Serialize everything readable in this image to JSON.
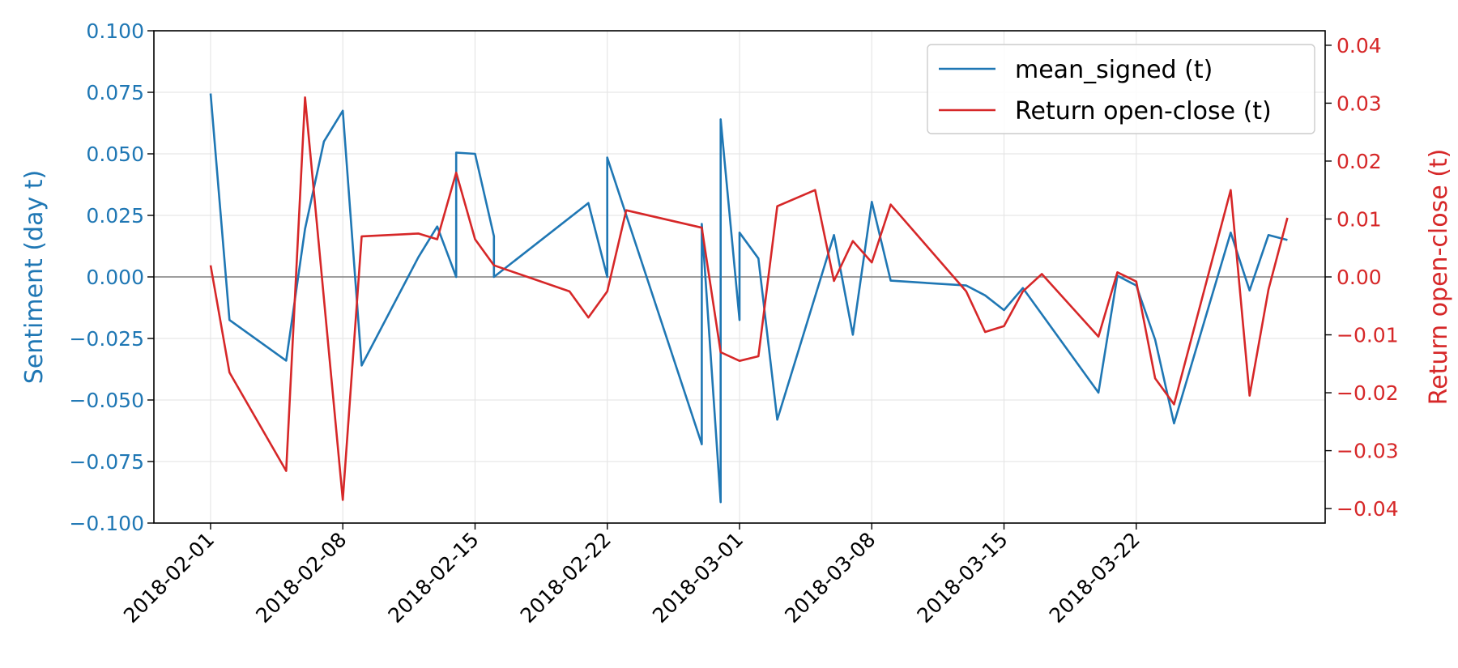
{
  "chart_data": {
    "type": "line",
    "xlabel": "",
    "ylabel_left": "Sentiment (day t)",
    "ylabel_right": "Return open-close (t)",
    "x_ticks": [
      "2018-02-01",
      "2018-02-08",
      "2018-02-15",
      "2018-02-22",
      "2018-03-01",
      "2018-03-08",
      "2018-03-15",
      "2018-03-22"
    ],
    "x_range": [
      "2018-01-29",
      "2018-04-01"
    ],
    "y_left": {
      "range": [
        -0.1,
        0.1
      ],
      "ticks": [
        -0.1,
        -0.075,
        -0.05,
        -0.025,
        0.0,
        0.025,
        0.05,
        0.075,
        0.1
      ],
      "tick_labels": [
        "−0.100",
        "−0.075",
        "−0.050",
        "−0.025",
        "0.000",
        "0.025",
        "0.050",
        "0.075",
        "0.100"
      ],
      "color": "#1f77b4"
    },
    "y_right": {
      "range": [
        -0.0425,
        0.0425
      ],
      "ticks": [
        -0.04,
        -0.03,
        -0.02,
        -0.01,
        0.0,
        0.01,
        0.02,
        0.03,
        0.04
      ],
      "tick_labels": [
        "−0.04",
        "−0.03",
        "−0.02",
        "−0.01",
        "0.00",
        "0.01",
        "0.02",
        "0.03",
        "0.04"
      ],
      "color": "#d62728"
    },
    "grid": true,
    "zero_line": true,
    "legend": {
      "placement": "upper-right"
    },
    "series": [
      {
        "name": "mean_signed (t)",
        "axis": "left",
        "color": "#1f77b4",
        "points": [
          [
            "2018-02-01",
            0.0745
          ],
          [
            "2018-02-02",
            -0.0175
          ],
          [
            "2018-02-05",
            -0.034
          ],
          [
            "2018-02-06",
            0.0195
          ],
          [
            "2018-02-07",
            0.055
          ],
          [
            "2018-02-08",
            0.0675
          ],
          [
            "2018-02-09",
            -0.036
          ],
          [
            "2018-02-12",
            0.008
          ],
          [
            "2018-02-13",
            0.0205
          ],
          [
            "2018-02-14",
            0.0
          ],
          [
            "2018-02-14",
            0.0505
          ],
          [
            "2018-02-15",
            0.05
          ],
          [
            "2018-02-16",
            0.0165
          ],
          [
            "2018-02-16",
            0.0
          ],
          [
            "2018-02-21",
            0.03
          ],
          [
            "2018-02-22",
            0.0
          ],
          [
            "2018-02-22",
            0.0485
          ],
          [
            "2018-02-27",
            -0.068
          ],
          [
            "2018-02-27",
            0.0215
          ],
          [
            "2018-02-28",
            -0.0915
          ],
          [
            "2018-02-28",
            0.064
          ],
          [
            "2018-03-01",
            -0.0175
          ],
          [
            "2018-03-01",
            0.018
          ],
          [
            "2018-03-02",
            0.0075
          ],
          [
            "2018-03-03",
            -0.058
          ],
          [
            "2018-03-06",
            0.017
          ],
          [
            "2018-03-07",
            -0.0235
          ],
          [
            "2018-03-08",
            0.0305
          ],
          [
            "2018-03-09",
            -0.0015
          ],
          [
            "2018-03-13",
            -0.0035
          ],
          [
            "2018-03-14",
            -0.0075
          ],
          [
            "2018-03-15",
            -0.0135
          ],
          [
            "2018-03-16",
            -0.0045
          ],
          [
            "2018-03-20",
            -0.047
          ],
          [
            "2018-03-21",
            0.0005
          ],
          [
            "2018-03-22",
            -0.0035
          ],
          [
            "2018-03-23",
            -0.0255
          ],
          [
            "2018-03-24",
            -0.0595
          ],
          [
            "2018-03-27",
            0.018
          ],
          [
            "2018-03-28",
            -0.0055
          ],
          [
            "2018-03-29",
            0.017
          ],
          [
            "2018-03-30",
            0.015
          ]
        ]
      },
      {
        "name": "Return open-close (t)",
        "axis": "right",
        "color": "#d62728",
        "points": [
          [
            "2018-02-01",
            0.002
          ],
          [
            "2018-02-02",
            -0.0165
          ],
          [
            "2018-02-05",
            -0.0335
          ],
          [
            "2018-02-06",
            0.031
          ],
          [
            "2018-02-08",
            -0.0385
          ],
          [
            "2018-02-09",
            0.007
          ],
          [
            "2018-02-12",
            0.0075
          ],
          [
            "2018-02-13",
            0.0065
          ],
          [
            "2018-02-14",
            0.018
          ],
          [
            "2018-02-15",
            0.0065
          ],
          [
            "2018-02-16",
            0.002
          ],
          [
            "2018-02-20",
            -0.0025
          ],
          [
            "2018-02-21",
            -0.007
          ],
          [
            "2018-02-22",
            -0.0025
          ],
          [
            "2018-02-23",
            0.0115
          ],
          [
            "2018-02-27",
            0.0085
          ],
          [
            "2018-02-28",
            -0.013
          ],
          [
            "2018-03-01",
            -0.0145
          ],
          [
            "2018-03-02",
            -0.0137
          ],
          [
            "2018-03-03",
            0.0122
          ],
          [
            "2018-03-05",
            0.015
          ],
          [
            "2018-03-06",
            -0.0007
          ],
          [
            "2018-03-07",
            0.0062
          ],
          [
            "2018-03-08",
            0.0025
          ],
          [
            "2018-03-09",
            0.0125
          ],
          [
            "2018-03-13",
            -0.0025
          ],
          [
            "2018-03-14",
            -0.0095
          ],
          [
            "2018-03-15",
            -0.0085
          ],
          [
            "2018-03-16",
            -0.0025
          ],
          [
            "2018-03-17",
            0.0005
          ],
          [
            "2018-03-20",
            -0.0103
          ],
          [
            "2018-03-21",
            0.0008
          ],
          [
            "2018-03-22",
            -0.0008
          ],
          [
            "2018-03-23",
            -0.0175
          ],
          [
            "2018-03-24",
            -0.022
          ],
          [
            "2018-03-27",
            0.015
          ],
          [
            "2018-03-28",
            -0.0205
          ],
          [
            "2018-03-29",
            -0.0022
          ],
          [
            "2018-03-30",
            0.0102
          ]
        ]
      }
    ]
  }
}
